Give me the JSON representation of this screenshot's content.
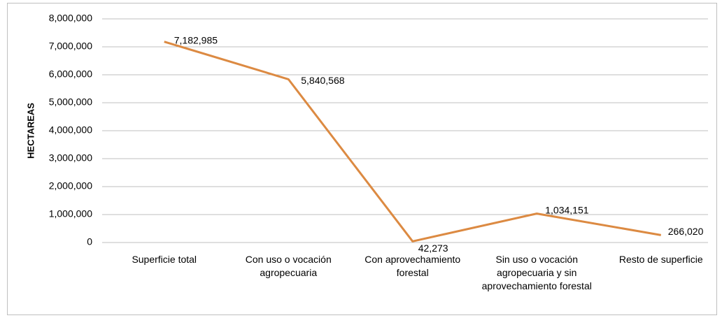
{
  "chart_data": {
    "type": "line",
    "y_label": "HECTAREAS",
    "categories": [
      "Superficie total",
      "Con uso o vocación agropecuaria",
      "Con aprovechamiento forestal",
      "Sin uso o vocación agropecuaria y sin aprovechamiento forestal",
      "Resto de superficie"
    ],
    "values": [
      7182985,
      5840568,
      42273,
      1034151,
      266020
    ],
    "value_labels": [
      "7,182,985",
      "5,840,568",
      "42,273",
      "1,034,151",
      "266,020"
    ],
    "color": "#dc8a42",
    "ylim": [
      0,
      8000000
    ],
    "yticks": [
      0,
      {
        "value": 1000000,
        "label": "1,000,000"
      },
      {
        "value": 2000000,
        "label": "2,000,000"
      },
      {
        "value": 3000000,
        "label": "3,000,000"
      },
      {
        "value": 4000000,
        "label": "4,000,000"
      },
      {
        "value": 5000000,
        "label": "5,000,000"
      },
      {
        "value": 6000000,
        "label": "6,000,000"
      },
      {
        "value": 7000000,
        "label": "7,000,000"
      },
      {
        "value": 8000000,
        "label": "8,000,000"
      }
    ],
    "grid": true
  }
}
